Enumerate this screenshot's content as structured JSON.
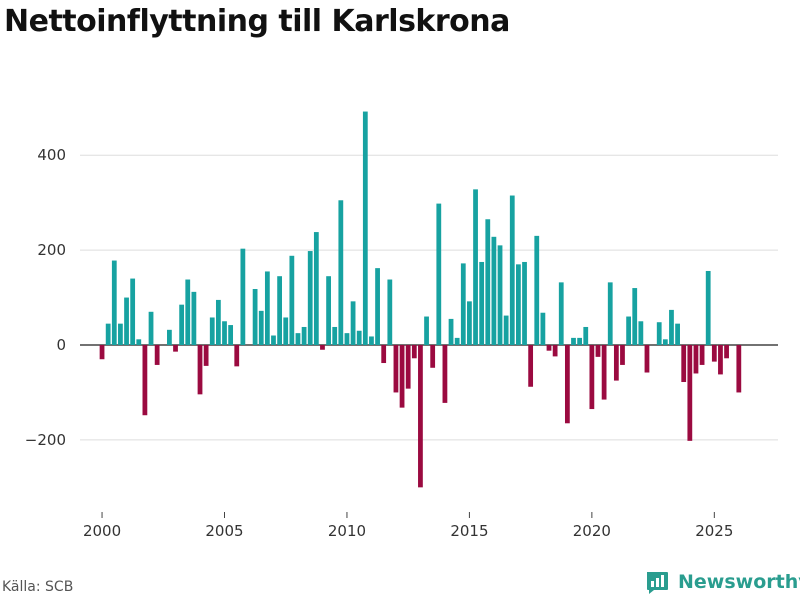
{
  "chart_data": {
    "type": "bar",
    "title": "Nettoinflyttning till Karlskrona",
    "xlabel": "",
    "ylabel": "",
    "ylim": [
      -320,
      520
    ],
    "yticks": [
      -200,
      0,
      200,
      400
    ],
    "ytick_labels": [
      "−200",
      "0",
      "200",
      "400"
    ],
    "xticks": [
      2000,
      2005,
      2010,
      2015,
      2020,
      2025
    ],
    "xtick_labels": [
      "2000",
      "2005",
      "2010",
      "2015",
      "2020",
      "2025"
    ],
    "xlim": [
      1999.1,
      2027.6
    ],
    "frequency": "quarterly",
    "start_year": 2000,
    "positive_color": "#17a2a1",
    "negative_color": "#9b0a40",
    "values": [
      -30,
      45,
      178,
      45,
      100,
      140,
      12,
      -148,
      70,
      -42,
      0,
      32,
      -14,
      85,
      138,
      112,
      -104,
      -44,
      58,
      95,
      50,
      42,
      -45,
      203,
      0,
      118,
      72,
      155,
      20,
      145,
      58,
      188,
      25,
      38,
      198,
      238,
      -10,
      145,
      38,
      305,
      25,
      92,
      30,
      492,
      18,
      162,
      -38,
      138,
      -100,
      -132,
      -92,
      -28,
      -300,
      60,
      -48,
      298,
      -122,
      55,
      15,
      172,
      92,
      328,
      175,
      265,
      228,
      210,
      62,
      315,
      170,
      175,
      -88,
      230,
      68,
      -12,
      -24,
      132,
      -165,
      15,
      15,
      38,
      -135,
      -25,
      -115,
      132,
      -75,
      -42,
      60,
      120,
      50,
      -58,
      0,
      48,
      12,
      74,
      45,
      -78,
      -202,
      -60,
      -42,
      156,
      -35,
      -62,
      -28,
      0,
      -100
    ]
  },
  "footer": {
    "source": "Källa: SCB",
    "brand": "Newsworthy"
  }
}
